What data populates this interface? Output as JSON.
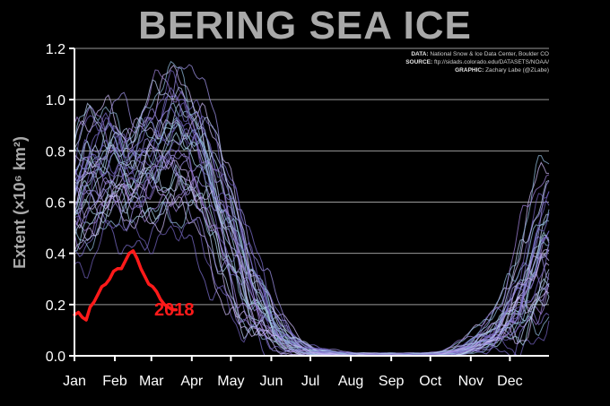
{
  "title": "BERING SEA ICE",
  "credits": [
    {
      "label": "DATA:",
      "text": "National Snow & Ice Data Center, Boulder CO"
    },
    {
      "label": "SOURCE:",
      "text": "ftp://sidads.colorado.edu/DATASETS/NOAA/"
    },
    {
      "label": "GRAPHIC:",
      "text": "Zachary Labe (@ZLabe)"
    }
  ],
  "colors": {
    "background": "#000000",
    "title": "#a9a9a9",
    "grid": "#9a9a9a",
    "historical_palette": [
      "#7a6cc9",
      "#9b8fe0",
      "#b9c9ee",
      "#8fb8d9",
      "#c8b6f0",
      "#6f5fb8",
      "#a7d0e6",
      "#9d7fd6"
    ],
    "highlight": "#ff1a1a"
  },
  "chart_data": {
    "type": "line",
    "title": "BERING SEA ICE",
    "xlabel": "",
    "ylabel": "Extent (×10⁶ km²)",
    "ylim": [
      0,
      1.2
    ],
    "xlim": [
      1,
      365
    ],
    "yticks": [
      0.0,
      0.2,
      0.4,
      0.6,
      0.8,
      1.0,
      1.2
    ],
    "ytick_labels": [
      "0.0",
      "0.2",
      "0.4",
      "0.6",
      "0.8",
      "1.0",
      "1.2"
    ],
    "xticks": [
      1,
      32,
      60,
      91,
      121,
      152,
      182,
      213,
      244,
      274,
      305,
      335
    ],
    "xtick_labels": [
      "Jan",
      "Feb",
      "Mar",
      "Apr",
      "May",
      "Jun",
      "Jul",
      "Aug",
      "Sep",
      "Oct",
      "Nov",
      "Dec"
    ],
    "grid": "horizontal",
    "historical_envelope": {
      "description_source": "ensemble of past years, x = day of year",
      "low": [
        [
          1,
          0.38
        ],
        [
          15,
          0.42
        ],
        [
          32,
          0.48
        ],
        [
          45,
          0.45
        ],
        [
          60,
          0.5
        ],
        [
          75,
          0.5
        ],
        [
          91,
          0.45
        ],
        [
          106,
          0.35
        ],
        [
          121,
          0.22
        ],
        [
          135,
          0.08
        ],
        [
          152,
          0.02
        ],
        [
          165,
          0.01
        ],
        [
          182,
          0.0
        ],
        [
          213,
          0.0
        ],
        [
          244,
          0.0
        ],
        [
          274,
          0.0
        ],
        [
          290,
          0.0
        ],
        [
          305,
          0.01
        ],
        [
          320,
          0.02
        ],
        [
          335,
          0.05
        ],
        [
          350,
          0.08
        ],
        [
          365,
          0.12
        ]
      ],
      "mid": [
        [
          1,
          0.55
        ],
        [
          15,
          0.6
        ],
        [
          32,
          0.68
        ],
        [
          45,
          0.72
        ],
        [
          60,
          0.74
        ],
        [
          75,
          0.78
        ],
        [
          91,
          0.76
        ],
        [
          106,
          0.62
        ],
        [
          121,
          0.42
        ],
        [
          135,
          0.22
        ],
        [
          152,
          0.08
        ],
        [
          165,
          0.03
        ],
        [
          182,
          0.01
        ],
        [
          213,
          0.0
        ],
        [
          244,
          0.0
        ],
        [
          274,
          0.0
        ],
        [
          290,
          0.01
        ],
        [
          305,
          0.03
        ],
        [
          320,
          0.06
        ],
        [
          335,
          0.12
        ],
        [
          350,
          0.25
        ],
        [
          365,
          0.4
        ]
      ],
      "high": [
        [
          1,
          0.8
        ],
        [
          10,
          0.95
        ],
        [
          32,
          0.95
        ],
        [
          45,
          0.9
        ],
        [
          60,
          1.0
        ],
        [
          75,
          1.1
        ],
        [
          91,
          1.1
        ],
        [
          106,
          0.9
        ],
        [
          121,
          0.65
        ],
        [
          135,
          0.4
        ],
        [
          152,
          0.2
        ],
        [
          165,
          0.08
        ],
        [
          182,
          0.03
        ],
        [
          213,
          0.01
        ],
        [
          244,
          0.01
        ],
        [
          274,
          0.01
        ],
        [
          290,
          0.02
        ],
        [
          305,
          0.06
        ],
        [
          320,
          0.12
        ],
        [
          335,
          0.25
        ],
        [
          350,
          0.5
        ],
        [
          365,
          0.75
        ]
      ],
      "count": 38
    },
    "series": [
      {
        "name": "2018",
        "x": [
          1,
          4,
          7,
          10,
          13,
          16,
          19,
          22,
          25,
          28,
          31,
          34,
          37,
          40,
          43,
          46,
          49,
          52,
          55,
          58,
          61,
          64,
          67,
          70,
          73,
          76,
          79
        ],
        "values": [
          0.16,
          0.17,
          0.15,
          0.14,
          0.19,
          0.21,
          0.24,
          0.27,
          0.28,
          0.3,
          0.33,
          0.34,
          0.34,
          0.37,
          0.4,
          0.41,
          0.38,
          0.34,
          0.31,
          0.28,
          0.27,
          0.25,
          0.22,
          0.2,
          0.19,
          0.18,
          0.18
        ]
      }
    ]
  }
}
